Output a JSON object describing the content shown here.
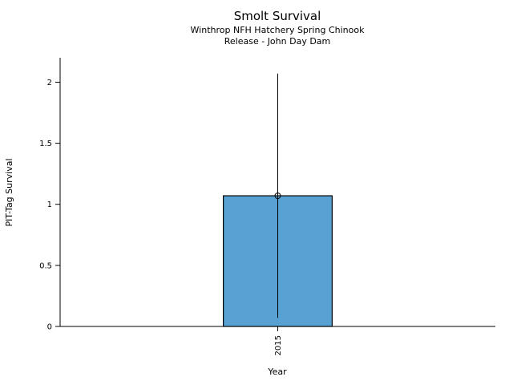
{
  "chart_data": {
    "type": "bar",
    "title": "Smolt Survival",
    "subtitle_line1": "Winthrop NFH Hatchery Spring Chinook",
    "subtitle_line2": "Release - John Day Dam",
    "xlabel": "Year",
    "ylabel": "PIT-Tag Survival",
    "categories": [
      "2015"
    ],
    "values": [
      1.07
    ],
    "error_low": [
      0.07
    ],
    "error_high": [
      2.07
    ],
    "yticks": [
      0,
      0.5,
      1,
      1.5,
      2
    ],
    "ylim": [
      0,
      2.2
    ],
    "bar_color": "#57a2d3",
    "bar_edge_color": "#000000",
    "axis_color": "#000000",
    "marker": "open-circle",
    "xtick_rotation_deg": 90,
    "grid": false,
    "legend": "none"
  }
}
